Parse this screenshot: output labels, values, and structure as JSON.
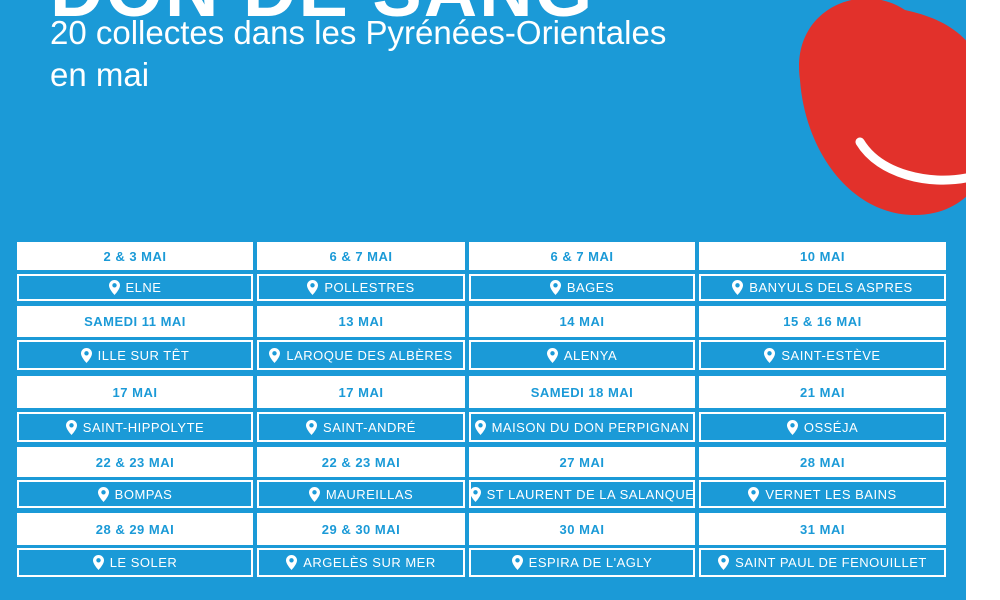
{
  "header": {
    "title": "DON DE SANG",
    "subtitle_line1": "20 collectes dans les Pyrénées-Orientales",
    "subtitle_line2": "en mai"
  },
  "table": {
    "rows": [
      [
        {
          "date": "2 & 3 MAI",
          "place": "ELNE"
        },
        {
          "date": "6 & 7 MAI",
          "place": "POLLESTRES"
        },
        {
          "date": "6 & 7 MAI",
          "place": "BAGES"
        },
        {
          "date": "10 MAI",
          "place": "BANYULS DELS ASPRES"
        }
      ],
      [
        {
          "date": "SAMEDI 11 MAI",
          "place": "ILLE SUR TÊT"
        },
        {
          "date": "13 MAI",
          "place": "LAROQUE DES ALBÈRES"
        },
        {
          "date": "14 MAI",
          "place": "ALENYA"
        },
        {
          "date": "15 & 16 MAI",
          "place": "SAINT-ESTÈVE"
        }
      ],
      [
        {
          "date": "17 MAI",
          "place": "SAINT-HIPPOLYTE"
        },
        {
          "date": "17 MAI",
          "place": "SAINT-ANDRÉ"
        },
        {
          "date": "SAMEDI 18 MAI",
          "place": "MAISON DU DON PERPIGNAN"
        },
        {
          "date": "21 MAI",
          "place": "OSSÉJA"
        }
      ],
      [
        {
          "date": "22 & 23 MAI",
          "place": "BOMPAS"
        },
        {
          "date": "22 & 23 MAI",
          "place": "MAUREILLAS"
        },
        {
          "date": "27 MAI",
          "place": "ST LAURENT DE LA SALANQUE"
        },
        {
          "date": "28 MAI",
          "place": "VERNET LES BAINS"
        }
      ],
      [
        {
          "date": "28 & 29 MAI",
          "place": "LE SOLER"
        },
        {
          "date": "29 & 30 MAI",
          "place": "ARGELÈS SUR MER"
        },
        {
          "date": "30 MAI",
          "place": "ESPIRA DE L'AGLY"
        },
        {
          "date": "31 MAI",
          "place": "SAINT PAUL DE FENOUILLET"
        }
      ]
    ]
  }
}
